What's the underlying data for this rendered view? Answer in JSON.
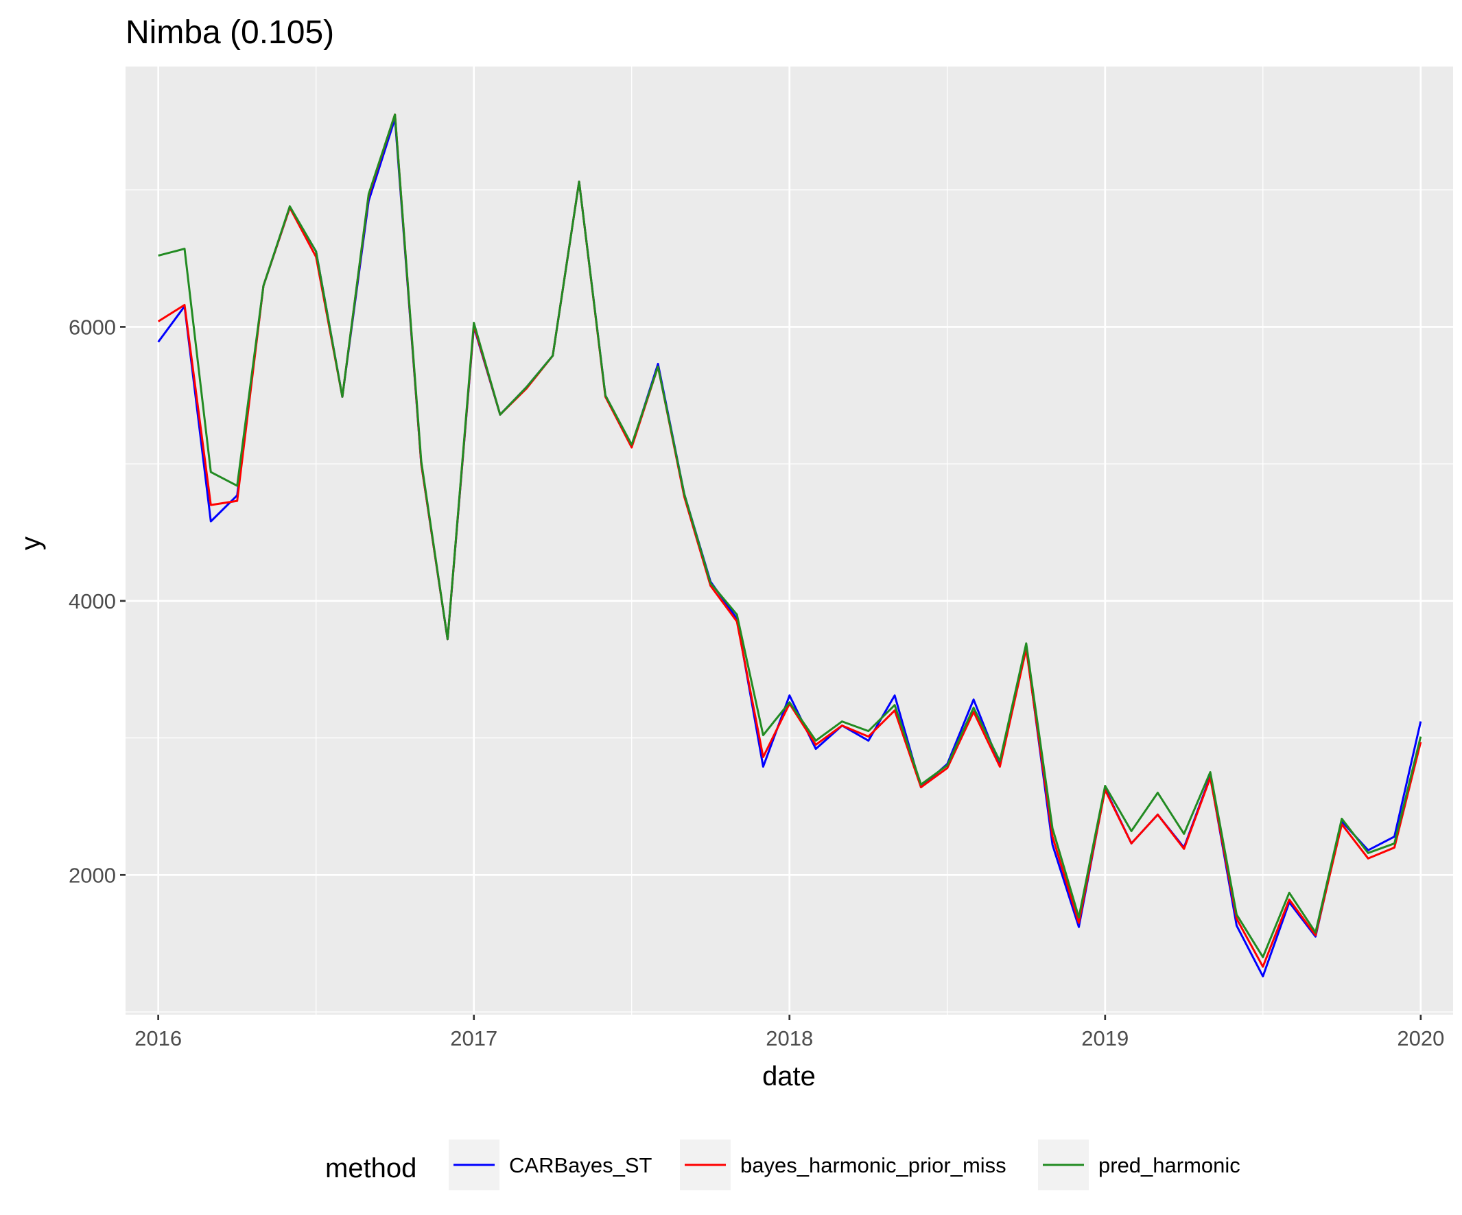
{
  "chart_data": {
    "type": "line",
    "title": "Nimba (0.105)",
    "xlabel": "date",
    "ylabel": "y",
    "xlim": [
      "2015-11-24",
      "2020-02-08"
    ],
    "ylim": [
      980,
      7900
    ],
    "x_ticks": [
      "2016",
      "2017",
      "2018",
      "2019",
      "2020"
    ],
    "y_ticks": [
      2000,
      4000,
      6000
    ],
    "grid": true,
    "legend": {
      "title": "method",
      "position": "bottom"
    },
    "x": [
      "2016-01",
      "2016-02",
      "2016-03",
      "2016-04",
      "2016-05",
      "2016-06",
      "2016-07",
      "2016-08",
      "2016-09",
      "2016-10",
      "2016-11",
      "2016-12",
      "2017-01",
      "2017-02",
      "2017-03",
      "2017-04",
      "2017-05",
      "2017-06",
      "2017-07",
      "2017-08",
      "2017-09",
      "2017-10",
      "2017-11",
      "2017-12",
      "2018-01",
      "2018-02",
      "2018-03",
      "2018-04",
      "2018-05",
      "2018-06",
      "2018-07",
      "2018-08",
      "2018-09",
      "2018-10",
      "2018-11",
      "2018-12",
      "2019-01",
      "2019-02",
      "2019-03",
      "2019-04",
      "2019-05",
      "2019-06",
      "2019-07",
      "2019-08",
      "2019-09",
      "2019-10",
      "2019-11",
      "2019-12",
      "2020-01"
    ],
    "series": [
      {
        "name": "CARBayes_ST",
        "color": "#0000ff",
        "values": [
          5890,
          6150,
          4580,
          4770,
          6300,
          6870,
          6550,
          5490,
          6920,
          7520,
          5000,
          3720,
          6000,
          5360,
          5560,
          5790,
          7060,
          5500,
          5130,
          5730,
          4780,
          4140,
          3870,
          2790,
          3310,
          2920,
          3090,
          2980,
          3310,
          2640,
          2810,
          3280,
          2800,
          3670,
          2220,
          1620,
          2630,
          2230,
          2440,
          2200,
          2720,
          1630,
          1260,
          1800,
          1550,
          2390,
          2180,
          2280,
          3120
        ]
      },
      {
        "name": "bayes_harmonic_prior_miss",
        "color": "#ff0000",
        "values": [
          6040,
          6160,
          4700,
          4730,
          6300,
          6870,
          6510,
          5490,
          6960,
          7550,
          5000,
          3720,
          6010,
          5360,
          5550,
          5790,
          7060,
          5490,
          5120,
          5710,
          4760,
          4110,
          3850,
          2860,
          3250,
          2950,
          3090,
          3010,
          3200,
          2640,
          2780,
          3190,
          2790,
          3650,
          2280,
          1650,
          2620,
          2230,
          2440,
          2190,
          2710,
          1680,
          1330,
          1820,
          1560,
          2370,
          2120,
          2200,
          2970
        ]
      },
      {
        "name": "pred_harmonic",
        "color": "#228b22",
        "values": [
          6520,
          6570,
          4940,
          4840,
          6300,
          6880,
          6550,
          5490,
          6970,
          7550,
          5020,
          3720,
          6030,
          5360,
          5560,
          5790,
          7060,
          5500,
          5140,
          5710,
          4780,
          4130,
          3900,
          3020,
          3260,
          2980,
          3120,
          3050,
          3240,
          2660,
          2800,
          3220,
          2830,
          3690,
          2340,
          1690,
          2650,
          2320,
          2600,
          2300,
          2750,
          1710,
          1400,
          1870,
          1580,
          2410,
          2160,
          2230,
          3010
        ]
      }
    ]
  }
}
